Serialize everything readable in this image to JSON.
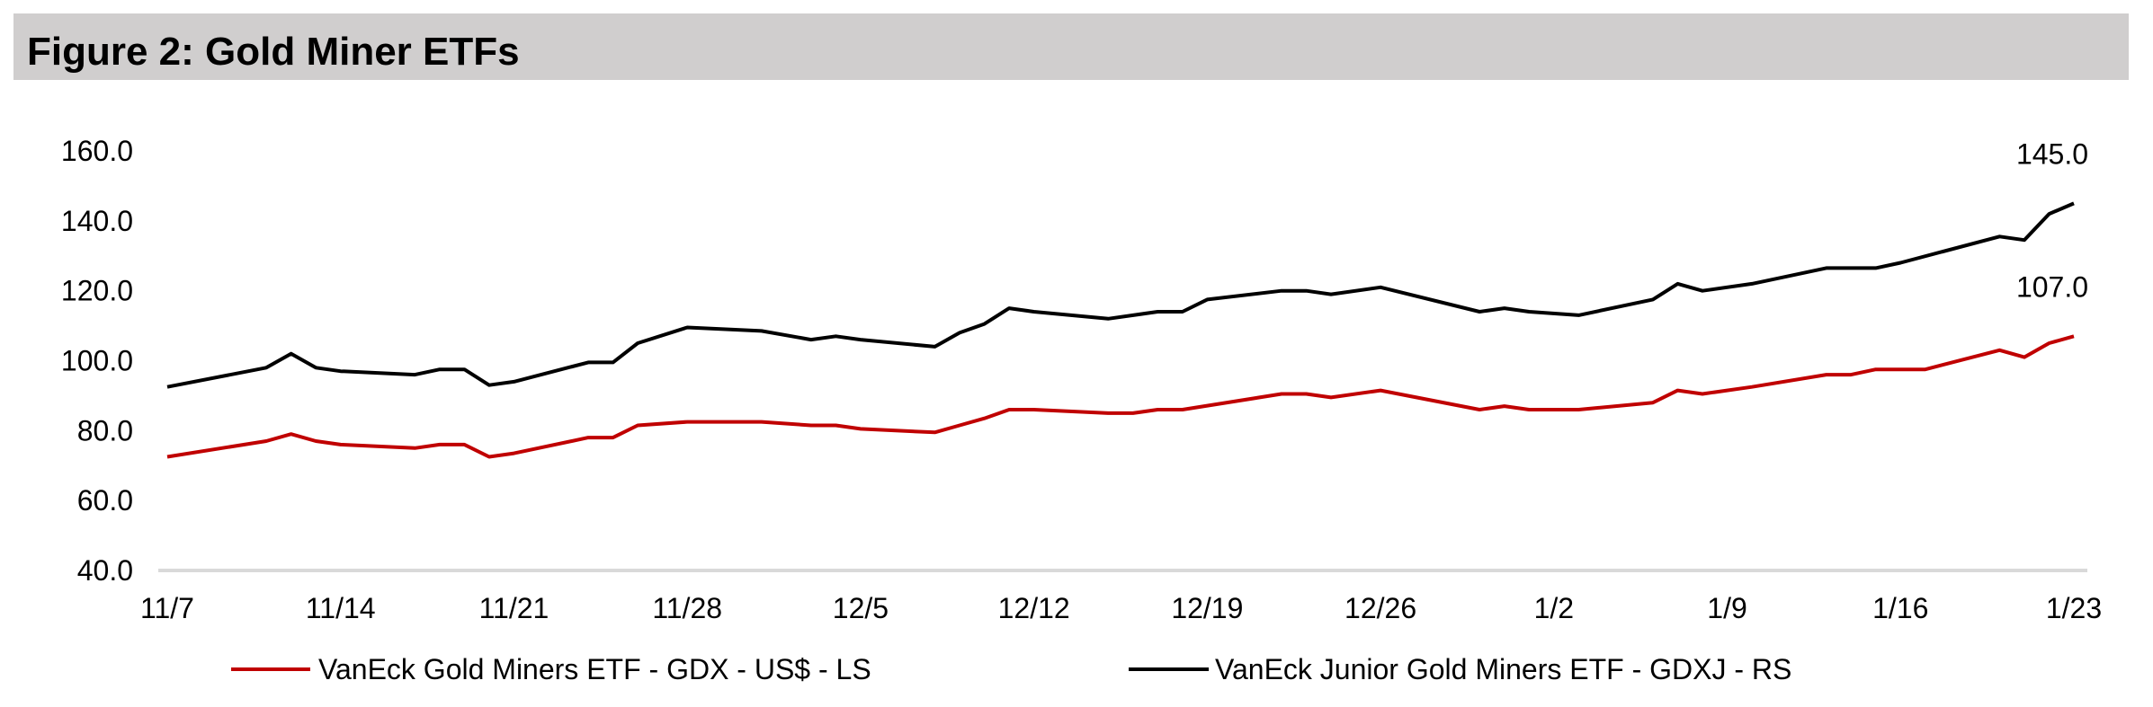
{
  "title": "Figure 2: Gold Miner ETFs",
  "chart_data": {
    "type": "line",
    "title": "Figure 2: Gold Miner ETFs",
    "xlabel": "",
    "ylabel": "",
    "ylim": [
      40,
      160
    ],
    "yticks": [
      "40.0",
      "60.0",
      "80.0",
      "100.0",
      "120.0",
      "140.0",
      "160.0"
    ],
    "xticks": [
      "11/7",
      "11/14",
      "11/21",
      "11/28",
      "12/5",
      "12/12",
      "12/19",
      "12/26",
      "1/2",
      "1/9",
      "1/16",
      "1/23"
    ],
    "x_unit": "days since 11/7",
    "grid": false,
    "legend_position": "bottom",
    "series": [
      {
        "name": "VanEck Gold Miners ETF  - GDX  - US$ - LS",
        "color": "#c00000",
        "end_label": "107.0",
        "points": [
          [
            0,
            72.5
          ],
          [
            4,
            77
          ],
          [
            5,
            79
          ],
          [
            6,
            77
          ],
          [
            7,
            76
          ],
          [
            10,
            75
          ],
          [
            11,
            76
          ],
          [
            12,
            76
          ],
          [
            13,
            72.5
          ],
          [
            14,
            73.5
          ],
          [
            17,
            78
          ],
          [
            18,
            78
          ],
          [
            19,
            81.5
          ],
          [
            21,
            82.5
          ],
          [
            24,
            82.5
          ],
          [
            26,
            81.5
          ],
          [
            27,
            81.5
          ],
          [
            28,
            80.5
          ],
          [
            31,
            79.5
          ],
          [
            32,
            81.5
          ],
          [
            33,
            83.5
          ],
          [
            34,
            86
          ],
          [
            35,
            86
          ],
          [
            38,
            85
          ],
          [
            39,
            85
          ],
          [
            40,
            86
          ],
          [
            41,
            86
          ],
          [
            45,
            90.5
          ],
          [
            46,
            90.5
          ],
          [
            47,
            89.5
          ],
          [
            49,
            91.5
          ],
          [
            53,
            86
          ],
          [
            54,
            87
          ],
          [
            55,
            86
          ],
          [
            57,
            86
          ],
          [
            60,
            88
          ],
          [
            61,
            91.5
          ],
          [
            62,
            90.5
          ],
          [
            64,
            92.5
          ],
          [
            67,
            96
          ],
          [
            68,
            96
          ],
          [
            69,
            97.5
          ],
          [
            71,
            97.5
          ],
          [
            74,
            103
          ],
          [
            75,
            101
          ],
          [
            76,
            105
          ],
          [
            77,
            107
          ]
        ]
      },
      {
        "name": "VanEck Junior Gold Miners ETF - GDXJ - RS",
        "color": "#000000",
        "end_label": "145.0",
        "points": [
          [
            0,
            92.5
          ],
          [
            4,
            98
          ],
          [
            5,
            102
          ],
          [
            6,
            98
          ],
          [
            7,
            97
          ],
          [
            10,
            96
          ],
          [
            11,
            97.5
          ],
          [
            12,
            97.5
          ],
          [
            13,
            93
          ],
          [
            14,
            94
          ],
          [
            17,
            99.5
          ],
          [
            18,
            99.5
          ],
          [
            19,
            105
          ],
          [
            21,
            109.5
          ],
          [
            24,
            108.5
          ],
          [
            26,
            106
          ],
          [
            27,
            107
          ],
          [
            28,
            106
          ],
          [
            31,
            104
          ],
          [
            32,
            108
          ],
          [
            33,
            110.5
          ],
          [
            34,
            115
          ],
          [
            35,
            114
          ],
          [
            38,
            112
          ],
          [
            40,
            114
          ],
          [
            41,
            114
          ],
          [
            42,
            117.5
          ],
          [
            45,
            120
          ],
          [
            46,
            120
          ],
          [
            47,
            119
          ],
          [
            49,
            121
          ],
          [
            53,
            114
          ],
          [
            54,
            115
          ],
          [
            55,
            114
          ],
          [
            57,
            113
          ],
          [
            60,
            117.5
          ],
          [
            61,
            122
          ],
          [
            62,
            120
          ],
          [
            64,
            122
          ],
          [
            67,
            126.5
          ],
          [
            69,
            126.5
          ],
          [
            70,
            128
          ],
          [
            74,
            135.5
          ],
          [
            75,
            134.5
          ],
          [
            76,
            142
          ],
          [
            77,
            145
          ]
        ]
      }
    ]
  }
}
